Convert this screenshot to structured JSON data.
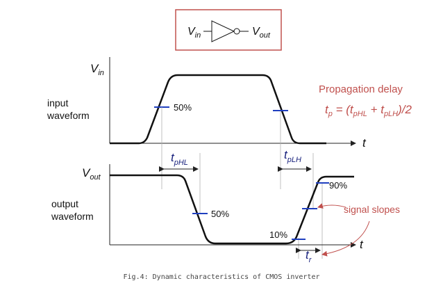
{
  "inverter_box": {
    "input_label": "V",
    "input_sub": "in",
    "output_label": "V",
    "output_sub": "out"
  },
  "input_plot": {
    "ylabel": "V",
    "ylabel_sub": "in",
    "waveform_label_line1": "input",
    "waveform_label_line2": "waveform",
    "xlabel": "t",
    "marker_label": "50%"
  },
  "output_plot": {
    "ylabel": "V",
    "ylabel_sub": "out",
    "waveform_label_line1": "output",
    "waveform_label_line2": "waveform",
    "xlabel": "t",
    "marker_50_label": "50%",
    "marker_10_label": "10%",
    "marker_90_label": "90%"
  },
  "delays": {
    "tphl_main": "t",
    "tphl_sub": "pHL",
    "tplh_main": "t",
    "tplh_sub": "pLH",
    "tr_main": "t",
    "tr_sub": "r"
  },
  "formula": {
    "title": "Propagation delay",
    "lhs_t": "t",
    "lhs_sub": "p",
    "eq_open": " = (",
    "t1": "t",
    "t1_sub": "pHL",
    "plus": " + ",
    "t2": "t",
    "t2_sub": "pLH",
    "eq_close": ")/2"
  },
  "annotation": {
    "signal_slopes": "signal slopes"
  },
  "caption": "Fig.4: Dynamic characteristics of CMOS inverter",
  "colors": {
    "box_border": "#c0504d",
    "formula": "#c0504d",
    "markers": "#1f3fbf",
    "delay_labels": "#1a237e",
    "annotation_arrow": "#c0504d"
  }
}
